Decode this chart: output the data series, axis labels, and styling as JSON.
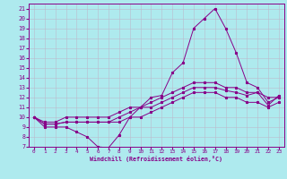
{
  "xlabel": "Windchill (Refroidissement éolien,°C)",
  "bg_color": "#aeeaee",
  "grid_color": "#bbbbcc",
  "line_color": "#880088",
  "ylim": [
    7,
    21.5
  ],
  "xlim": [
    -0.5,
    23.5
  ],
  "yticks": [
    7,
    8,
    9,
    10,
    11,
    12,
    13,
    14,
    15,
    16,
    17,
    18,
    19,
    20,
    21
  ],
  "xticks": [
    0,
    1,
    2,
    3,
    4,
    5,
    6,
    7,
    8,
    9,
    10,
    11,
    12,
    13,
    14,
    15,
    16,
    17,
    18,
    19,
    20,
    21,
    22,
    23
  ],
  "line1_x": [
    0,
    1,
    2,
    3,
    4,
    5,
    6,
    7,
    8,
    9,
    10,
    11,
    12,
    13,
    14,
    15,
    16,
    17,
    18,
    19,
    20,
    21,
    22,
    23
  ],
  "line1_y": [
    10,
    9,
    9,
    9,
    8.5,
    8,
    7,
    6.9,
    8.2,
    10,
    11,
    12,
    12.2,
    14.5,
    15.5,
    19.0,
    20.0,
    21.0,
    19.0,
    16.5,
    13.5,
    13,
    11.5,
    12
  ],
  "line2_x": [
    0,
    1,
    2,
    3,
    4,
    5,
    6,
    7,
    8,
    9,
    10,
    11,
    12,
    13,
    14,
    15,
    16,
    17,
    18,
    19,
    20,
    21,
    22,
    23
  ],
  "line2_y": [
    10,
    9.3,
    9.3,
    9.5,
    9.5,
    9.5,
    9.5,
    9.5,
    10,
    10.5,
    11,
    11,
    11.5,
    12,
    12.5,
    13,
    13,
    13,
    12.7,
    12.5,
    12.2,
    12.5,
    11.2,
    12.2
  ],
  "line3_x": [
    0,
    1,
    2,
    3,
    4,
    5,
    6,
    7,
    8,
    9,
    10,
    11,
    12,
    13,
    14,
    15,
    16,
    17,
    18,
    19,
    20,
    21,
    22,
    23
  ],
  "line3_y": [
    10,
    9.5,
    9.5,
    10,
    10,
    10,
    10,
    10,
    10.5,
    11,
    11,
    11.5,
    12,
    12.5,
    13,
    13.5,
    13.5,
    13.5,
    13,
    13,
    12.5,
    12.5,
    12,
    12
  ],
  "line4_x": [
    0,
    1,
    2,
    3,
    4,
    5,
    6,
    7,
    8,
    9,
    10,
    11,
    12,
    13,
    14,
    15,
    16,
    17,
    18,
    19,
    20,
    21,
    22,
    23
  ],
  "line4_y": [
    10,
    9.3,
    9.3,
    9.5,
    9.5,
    9.5,
    9.5,
    9.5,
    9.5,
    10,
    10,
    10.5,
    11,
    11.5,
    12,
    12.5,
    12.5,
    12.5,
    12,
    12,
    11.5,
    11.5,
    11,
    11.5
  ]
}
